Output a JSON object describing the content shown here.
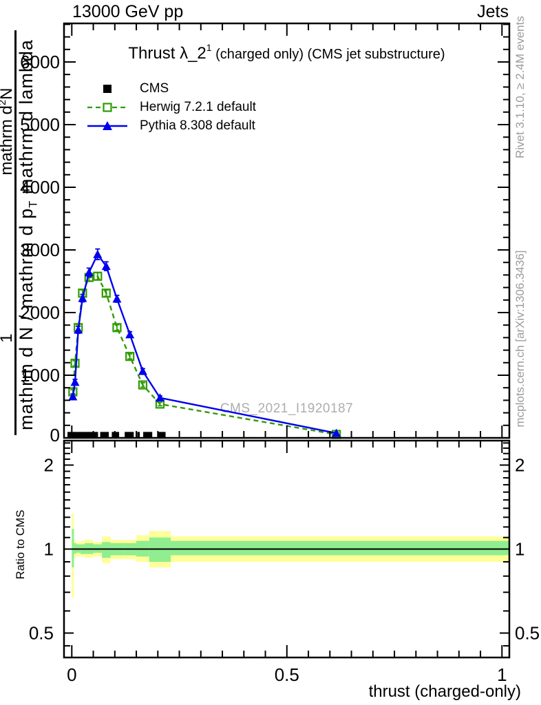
{
  "header": {
    "beam": "13000 GeV pp",
    "category": "Jets"
  },
  "title": {
    "main": "Thrust λ_2",
    "sup": "1",
    "suffix": " (charged only) (CMS jet substructure)"
  },
  "legend": [
    {
      "label": "CMS",
      "marker": "filled-square",
      "line": "none",
      "color": "#000000"
    },
    {
      "label": "Herwig 7.2.1 default",
      "marker": "open-square",
      "line": "dashed",
      "color": "#2E9B00"
    },
    {
      "label": "Pythia 8.308 default",
      "marker": "filled-triangle",
      "line": "solid",
      "color": "#0000EE"
    }
  ],
  "watermark": "CMS_2021_I1920187",
  "side_notes": {
    "top_right": "Rivet 3.1.10, ≥ 2.4M events",
    "bottom_right": "mcplots.cern.ch [arXiv:1306.3436]"
  },
  "y_axis_label": {
    "num_prefix": "1",
    "num_main": "mathrm d",
    "num_sup": "2",
    "num_post": "N",
    "den_pre": "mathrm d N / mathrm d p",
    "den_sub": "T",
    "den_post": " mathrm d lambda"
  },
  "ratio_axis_label": "Ratio to CMS",
  "x_axis_label": "thrust (charged-only)",
  "colors": {
    "pythia": "#0000EE",
    "herwig": "#2E9B00",
    "cms": "#000000",
    "band_yellow": "#FFFF99",
    "band_green": "#90EE90",
    "gray_text": "#9B9B9B",
    "watermark": "#ADADAD"
  },
  "chart_data": {
    "type": "line",
    "title": "Thrust λ_2^1 (charged only) (CMS jet substructure)",
    "xlabel": "thrust (charged-only)",
    "ylabel": "1 mathrm d^2 N / mathrm d N / mathrm d p_T mathrm d lambda",
    "ratio_ylabel": "Ratio to CMS",
    "x_range": [
      -0.018,
      1.017
    ],
    "y_range": [
      0,
      6615
    ],
    "ratio_range": [
      0.41,
      2.44
    ],
    "grid": false,
    "legend_position": "top-left",
    "x_ticks": {
      "major": [
        0,
        0.5,
        1
      ],
      "labels": [
        "0",
        "0.5",
        "1"
      ],
      "minor_step": 0.05
    },
    "y_ticks": {
      "major": [
        0,
        1000,
        2000,
        3000,
        4000,
        5000,
        6000
      ],
      "labels": [
        "0",
        "1000",
        "2000",
        "3000",
        "4000",
        "5000",
        "6000"
      ],
      "minor_step": 200
    },
    "ratio_ticks": {
      "major": [
        0.5,
        1,
        2
      ],
      "labels": [
        "0.5",
        "1",
        "2"
      ],
      "minors": [
        0.45,
        0.6,
        0.7,
        0.8,
        0.9,
        1.1,
        1.2,
        1.3,
        1.4,
        1.5,
        1.6,
        1.7,
        1.8,
        1.9,
        2.1,
        2.2,
        2.3,
        2.4
      ]
    },
    "bin_edges": [
      0,
      0.005,
      0.01,
      0.02,
      0.03,
      0.05,
      0.07,
      0.09,
      0.12,
      0.15,
      0.18,
      0.23,
      1.0
    ],
    "bin_centers": [
      0.0025,
      0.0075,
      0.015,
      0.025,
      0.04,
      0.06,
      0.08,
      0.105,
      0.135,
      0.165,
      0.205,
      0.615
    ],
    "series": [
      {
        "name": "Herwig 7.2.1 default",
        "values": [
          735,
          1190,
          1760,
          2310,
          2560,
          2580,
          2310,
          1760,
          1300,
          845,
          540,
          55
        ],
        "errors": [
          35,
          40,
          45,
          50,
          55,
          55,
          50,
          45,
          40,
          35,
          28,
          8
        ]
      },
      {
        "name": "Pythia 8.308 default",
        "values": [
          660,
          890,
          1725,
          2230,
          2640,
          2930,
          2740,
          2220,
          1650,
          1065,
          640,
          75
        ],
        "errors": [
          40,
          45,
          55,
          60,
          70,
          85,
          70,
          55,
          45,
          40,
          30,
          10
        ]
      }
    ],
    "cms_boxes": {
      "y_low": 0,
      "y_high": 95,
      "x_ranges": [
        [
          -0.01,
          0.061
        ],
        [
          0.066,
          0.086
        ],
        [
          0.093,
          0.11
        ],
        [
          0.123,
          0.144
        ],
        [
          0.152,
          0.158
        ],
        [
          0.166,
          0.187
        ],
        [
          0.2,
          0.218
        ]
      ]
    },
    "ratio_reference": 1,
    "ratio_bands": [
      {
        "x": [
          0,
          0.005
        ],
        "yellow": [
          0.67,
          1.34
        ],
        "green": [
          0.86,
          1.18
        ]
      },
      {
        "x": [
          0.005,
          0.01
        ],
        "yellow": [
          0.93,
          1.08
        ],
        "green": [
          0.96,
          1.05
        ]
      },
      {
        "x": [
          0.01,
          0.02
        ],
        "yellow": [
          0.94,
          1.06
        ],
        "green": [
          0.97,
          1.04
        ]
      },
      {
        "x": [
          0.02,
          0.03
        ],
        "yellow": [
          0.94,
          1.07
        ],
        "green": [
          0.96,
          1.04
        ]
      },
      {
        "x": [
          0.03,
          0.05
        ],
        "yellow": [
          0.93,
          1.08
        ],
        "green": [
          0.96,
          1.05
        ]
      },
      {
        "x": [
          0.05,
          0.07
        ],
        "yellow": [
          0.94,
          1.06
        ],
        "green": [
          0.97,
          1.04
        ]
      },
      {
        "x": [
          0.07,
          0.09
        ],
        "yellow": [
          0.89,
          1.11
        ],
        "green": [
          0.93,
          1.06
        ]
      },
      {
        "x": [
          0.09,
          0.12
        ],
        "yellow": [
          0.92,
          1.08
        ],
        "green": [
          0.95,
          1.05
        ]
      },
      {
        "x": [
          0.12,
          0.15
        ],
        "yellow": [
          0.92,
          1.08
        ],
        "green": [
          0.95,
          1.05
        ]
      },
      {
        "x": [
          0.15,
          0.18
        ],
        "yellow": [
          0.9,
          1.12
        ],
        "green": [
          0.94,
          1.07
        ]
      },
      {
        "x": [
          0.18,
          0.23
        ],
        "yellow": [
          0.86,
          1.16
        ],
        "green": [
          0.9,
          1.1
        ]
      },
      {
        "x": [
          0.23,
          1.0
        ],
        "yellow": [
          0.9,
          1.11
        ],
        "green": [
          0.95,
          1.07
        ]
      }
    ]
  }
}
